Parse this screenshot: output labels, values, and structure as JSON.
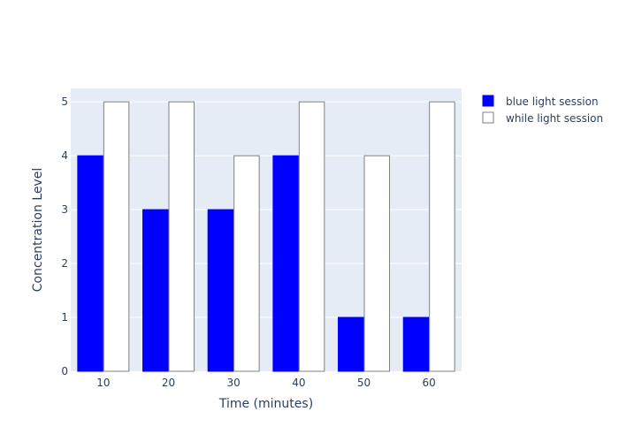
{
  "chart_data": {
    "type": "bar",
    "title": "",
    "xlabel": "Time (minutes)",
    "ylabel": "Concentration Level",
    "categories": [
      "10",
      "20",
      "30",
      "40",
      "50",
      "60"
    ],
    "ylim": [
      0,
      5.25
    ],
    "yticks": [
      0,
      1,
      2,
      3,
      4,
      5
    ],
    "grid": true,
    "legend_position": "top-right",
    "background_color": "#e5ecf6",
    "series": [
      {
        "name": "blue light session",
        "values": [
          4,
          3,
          3,
          4,
          1,
          1
        ],
        "color": "#0000ff",
        "outline": "#0000ff"
      },
      {
        "name": "while light session",
        "values": [
          5,
          5,
          4,
          5,
          4,
          5
        ],
        "color": "#ffffff",
        "outline": "#808080"
      }
    ]
  }
}
